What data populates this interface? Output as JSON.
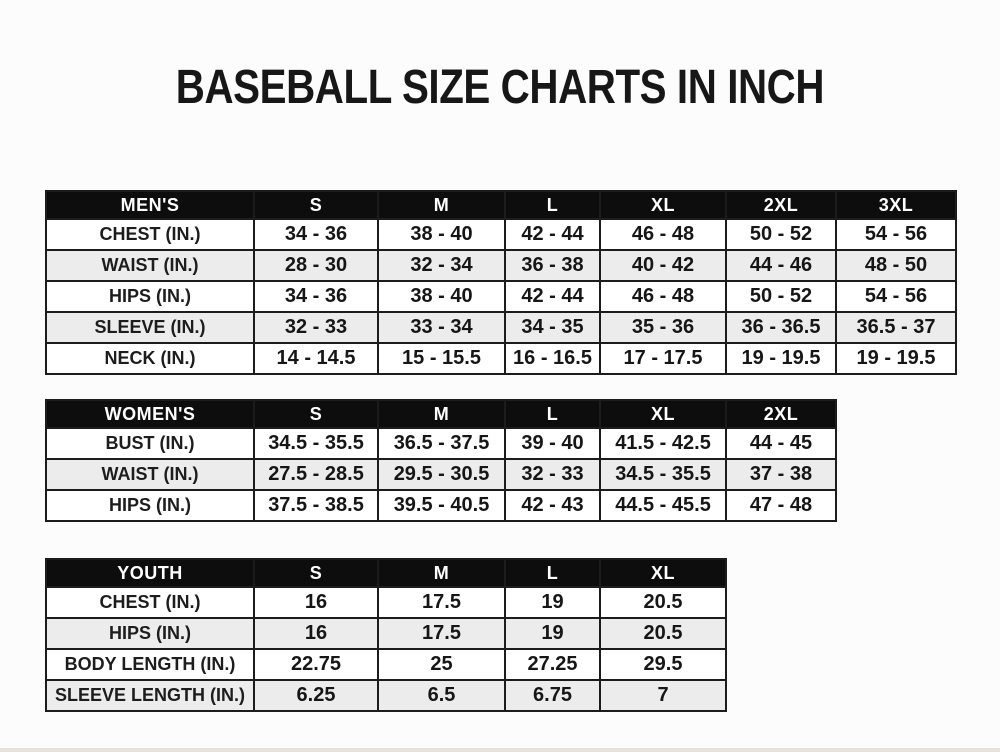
{
  "title": "BASEBALL SIZE CHARTS IN INCH",
  "colors": {
    "header_bg": "#0d0d0d",
    "header_text": "#ffffff",
    "row_alt_bg": "#ececec",
    "border": "#1c1c1c",
    "page_bg": "#fcfcfc",
    "text": "#171717"
  },
  "tables": [
    {
      "id": "mens",
      "title": "MEN'S",
      "sizes": [
        "S",
        "M",
        "L",
        "XL",
        "2XL",
        "3XL"
      ],
      "rows": [
        {
          "label": "CHEST (IN.)",
          "values": [
            "34 - 36",
            "38 - 40",
            "42 - 44",
            "46 - 48",
            "50 - 52",
            "54 - 56"
          ]
        },
        {
          "label": "WAIST (IN.)",
          "values": [
            "28 - 30",
            "32 - 34",
            "36 - 38",
            "40 - 42",
            "44 - 46",
            "48 - 50"
          ]
        },
        {
          "label": "HIPS (IN.)",
          "values": [
            "34 - 36",
            "38 - 40",
            "42 - 44",
            "46 - 48",
            "50 - 52",
            "54 - 56"
          ]
        },
        {
          "label": "SLEEVE (IN.)",
          "values": [
            "32 - 33",
            "33 - 34",
            "34 - 35",
            "35 - 36",
            "36 - 36.5",
            "36.5 - 37"
          ]
        },
        {
          "label": "NECK (IN.)",
          "values": [
            "14 - 14.5",
            "15 - 15.5",
            "16 - 16.5",
            "17 - 17.5",
            "19 - 19.5",
            "19 - 19.5"
          ]
        }
      ]
    },
    {
      "id": "womens",
      "title": "WOMEN'S",
      "sizes": [
        "S",
        "M",
        "L",
        "XL",
        "2XL"
      ],
      "rows": [
        {
          "label": "BUST (IN.)",
          "values": [
            "34.5 - 35.5",
            "36.5 - 37.5",
            "39 - 40",
            "41.5 - 42.5",
            "44 - 45"
          ]
        },
        {
          "label": "WAIST (IN.)",
          "values": [
            "27.5 - 28.5",
            "29.5 - 30.5",
            "32 - 33",
            "34.5 - 35.5",
            "37 - 38"
          ]
        },
        {
          "label": "HIPS (IN.)",
          "values": [
            "37.5 - 38.5",
            "39.5 - 40.5",
            "42 - 43",
            "44.5 - 45.5",
            "47 - 48"
          ]
        }
      ]
    },
    {
      "id": "youth",
      "title": "YOUTH",
      "sizes": [
        "S",
        "M",
        "L",
        "XL"
      ],
      "rows": [
        {
          "label": "CHEST (IN.)",
          "values": [
            "16",
            "17.5",
            "19",
            "20.5"
          ]
        },
        {
          "label": "HIPS (IN.)",
          "values": [
            "16",
            "17.5",
            "19",
            "20.5"
          ]
        },
        {
          "label": "BODY LENGTH (IN.)",
          "values": [
            "22.75",
            "25",
            "27.25",
            "29.5"
          ]
        },
        {
          "label": "SLEEVE LENGTH (IN.)",
          "values": [
            "6.25",
            "6.5",
            "6.75",
            "7"
          ]
        }
      ]
    }
  ]
}
